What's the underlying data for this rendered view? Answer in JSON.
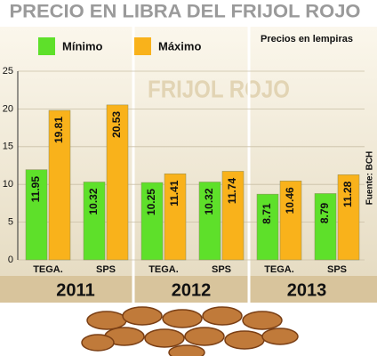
{
  "chart_data": {
    "type": "bar",
    "title": "PRECIO EN LIBRA DEL FRIJOL ROJO",
    "subtitle": "Precios en lempiras",
    "watermark": "FRIJOL ROJO",
    "source": "Fuente: BCH",
    "categories": [
      "TEGA.",
      "SPS",
      "TEGA.",
      "SPS",
      "TEGA.",
      "SPS"
    ],
    "groups": [
      "2011",
      "2012",
      "2013"
    ],
    "series": [
      {
        "name": "Mínimo",
        "color": "#5ee02a",
        "values": [
          11.95,
          10.32,
          10.25,
          10.32,
          8.71,
          8.79
        ]
      },
      {
        "name": "Máximo",
        "color": "#f9b21b",
        "values": [
          19.81,
          20.53,
          11.41,
          11.74,
          10.46,
          11.28
        ]
      }
    ],
    "ylim": [
      0,
      25
    ],
    "yticks": [
      0,
      5,
      10,
      15,
      20,
      25
    ],
    "grid": true
  }
}
